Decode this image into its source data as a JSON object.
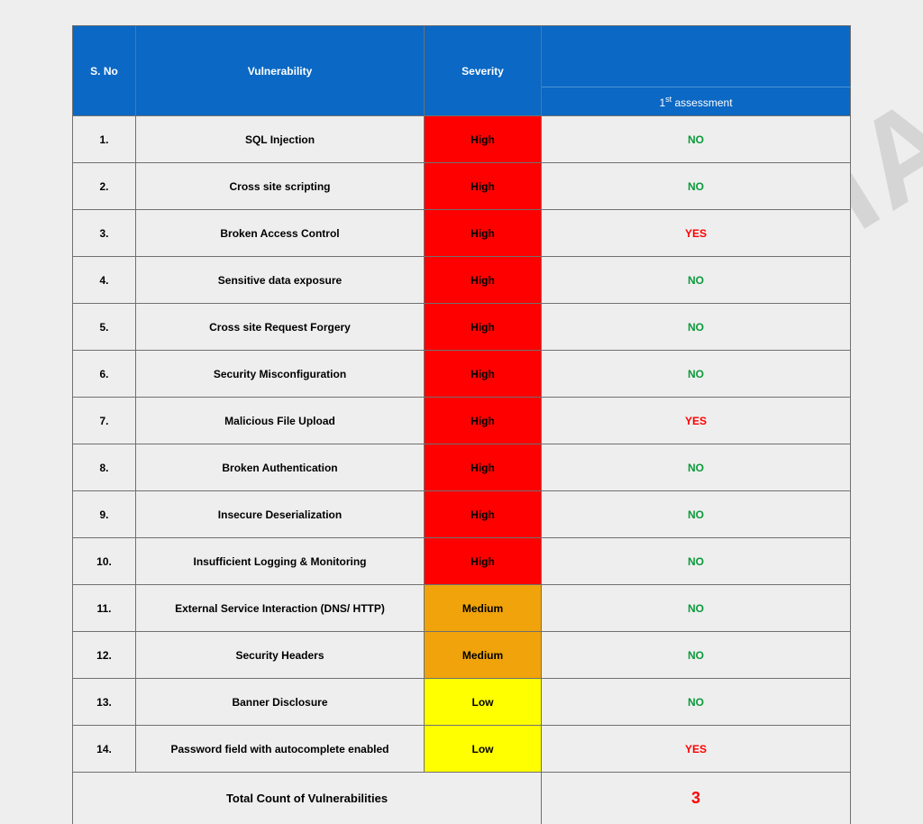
{
  "watermark": "CONFIDENTIAL",
  "colors": {
    "page_bg": "#eeeeee",
    "header_bg": "#0b68c4",
    "header_fg": "#ffffff",
    "border": "#707070",
    "no_color": "#0a9a3a",
    "yes_color": "#ff0000",
    "count_color": "#ff0000",
    "watermark_color": "#b9b9b9"
  },
  "severity_colors": {
    "High": "#ff0000",
    "Medium": "#f0a30a",
    "Low": "#ffff00"
  },
  "header": {
    "sno": "S. No",
    "vulnerability": "Vulnerability",
    "severity": "Severity",
    "assessment_html": "1<sup>st</sup> assessment",
    "assessment_plain": "1st assessment"
  },
  "rows": [
    {
      "n": "1.",
      "vuln": "SQL Injection",
      "sev": "High",
      "ass": "NO"
    },
    {
      "n": "2.",
      "vuln": "Cross site scripting",
      "sev": "High",
      "ass": "NO"
    },
    {
      "n": "3.",
      "vuln": "Broken Access Control",
      "sev": "High",
      "ass": "YES"
    },
    {
      "n": "4.",
      "vuln": "Sensitive data exposure",
      "sev": "High",
      "ass": "NO"
    },
    {
      "n": "5.",
      "vuln": "Cross site Request Forgery",
      "sev": "High",
      "ass": "NO"
    },
    {
      "n": "6.",
      "vuln": "Security Misconfiguration",
      "sev": "High",
      "ass": "NO"
    },
    {
      "n": "7.",
      "vuln": "Malicious File Upload",
      "sev": "High",
      "ass": "YES"
    },
    {
      "n": "8.",
      "vuln": "Broken Authentication",
      "sev": "High",
      "ass": "NO"
    },
    {
      "n": "9.",
      "vuln": "Insecure Deserialization",
      "sev": "High",
      "ass": "NO"
    },
    {
      "n": "10.",
      "vuln": "Insufficient Logging & Monitoring",
      "sev": "High",
      "ass": "NO"
    },
    {
      "n": "11.",
      "vuln": "External Service Interaction (DNS/ HTTP)",
      "sev": "Medium",
      "ass": "NO"
    },
    {
      "n": "12.",
      "vuln": "Security Headers",
      "sev": "Medium",
      "ass": "NO"
    },
    {
      "n": "13.",
      "vuln": "Banner Disclosure",
      "sev": "Low",
      "ass": "NO"
    },
    {
      "n": "14.",
      "vuln": "Password field with autocomplete enabled",
      "sev": "Low",
      "ass": "YES"
    }
  ],
  "footer": {
    "label": "Total Count of Vulnerabilities",
    "count": "3"
  }
}
